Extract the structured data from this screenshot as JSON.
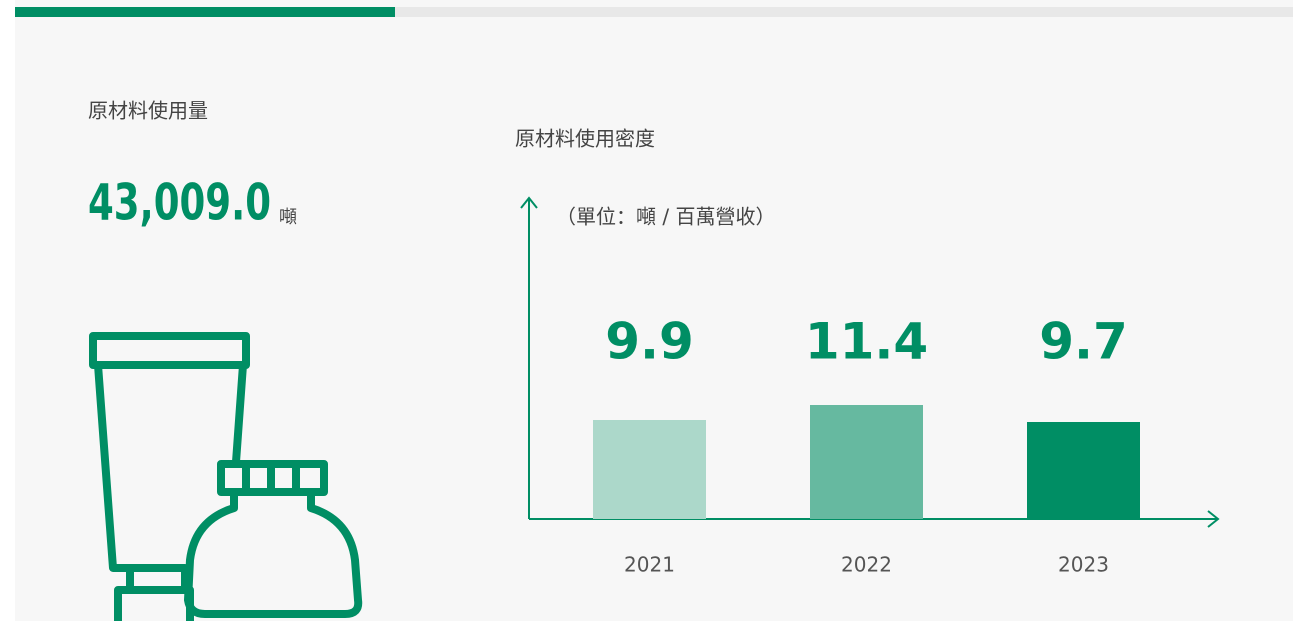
{
  "kpi": {
    "title": "原材料使用量",
    "value": "43,009.0",
    "unit": "噸"
  },
  "chart_data": {
    "type": "bar",
    "title": "原材料使用密度",
    "subtitle": "（單位：噸 / 百萬營收）",
    "categories": [
      "2021",
      "2022",
      "2023"
    ],
    "values": [
      9.9,
      11.4,
      9.7
    ],
    "colors": [
      "#acd8ca",
      "#66b9a0",
      "#008e64"
    ],
    "ylim": [
      0,
      32
    ]
  }
}
